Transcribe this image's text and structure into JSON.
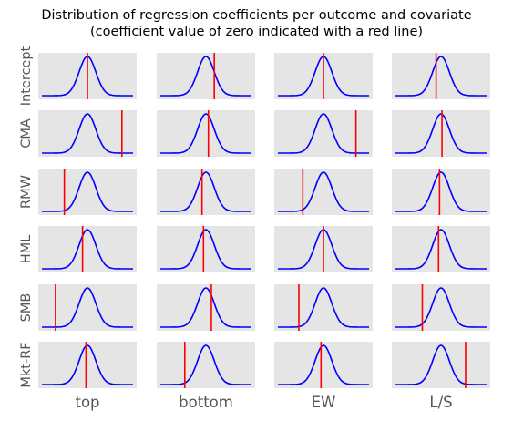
{
  "chart_data": {
    "type": "small-multiples-density",
    "title_line1": "Distribution of regression coefficients per outcome and covariate",
    "title_line2": "(coefficient value of zero indicated with a red line)",
    "rows": [
      "Intercept",
      "CMA",
      "RMW",
      "HML",
      "SMB",
      "Mkt-RF"
    ],
    "cols": [
      "top",
      "bottom",
      "EW",
      "L/S"
    ],
    "zero_line_position": [
      [
        0.0,
        0.17,
        0.0,
        -0.1
      ],
      [
        0.7,
        0.05,
        0.66,
        0.02
      ],
      [
        -0.47,
        -0.08,
        -0.42,
        -0.03
      ],
      [
        -0.1,
        -0.05,
        0.0,
        -0.05
      ],
      [
        -0.65,
        0.11,
        -0.5,
        -0.38
      ],
      [
        -0.03,
        -0.43,
        -0.05,
        0.5
      ]
    ],
    "colors": {
      "density": "#0000ff",
      "zero_line": "#ff0000",
      "panel_bg": "#e5e5e5",
      "label": "#555555"
    }
  }
}
